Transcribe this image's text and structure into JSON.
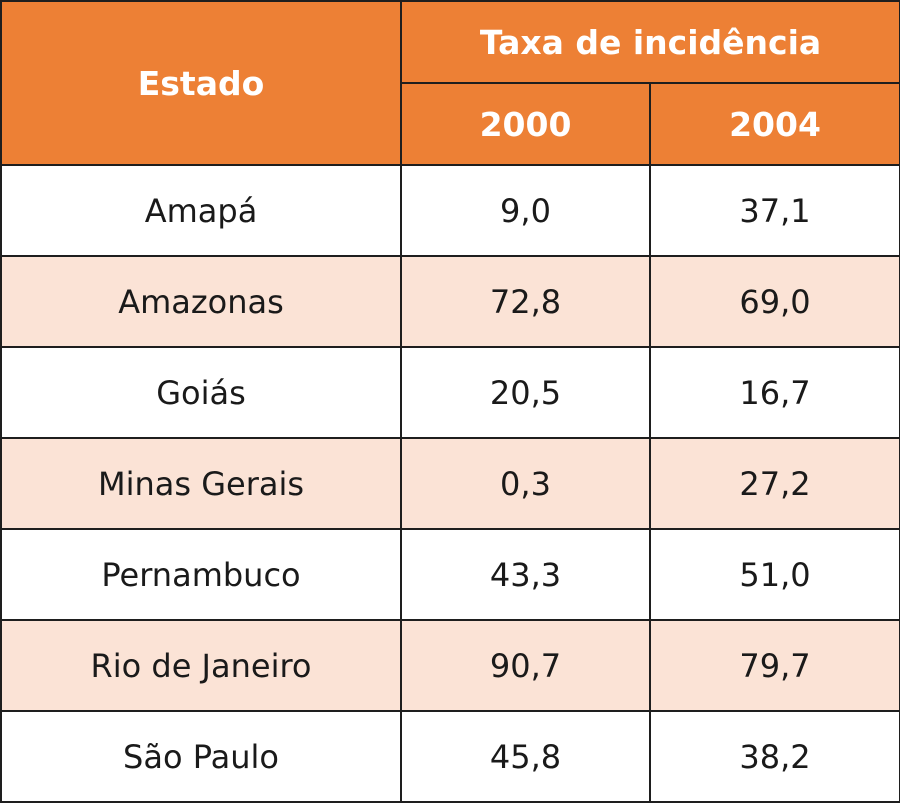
{
  "table": {
    "colors": {
      "header_bg": "#ed8035",
      "header_text": "#ffffff",
      "row_alt_bg": "#fbe3d6",
      "row_bg": "#ffffff",
      "border": "#1e1e1e"
    },
    "header": {
      "state": "Estado",
      "group": "Taxa de incidência",
      "years": [
        "2000",
        "2004"
      ]
    },
    "rows": [
      {
        "state": "Amapá",
        "v2000": "9,0",
        "v2004": "37,1"
      },
      {
        "state": "Amazonas",
        "v2000": "72,8",
        "v2004": "69,0"
      },
      {
        "state": "Goiás",
        "v2000": "20,5",
        "v2004": "16,7"
      },
      {
        "state": "Minas Gerais",
        "v2000": "0,3",
        "v2004": "27,2"
      },
      {
        "state": "Pernambuco",
        "v2000": "43,3",
        "v2004": "51,0"
      },
      {
        "state": "Rio de Janeiro",
        "v2000": "90,7",
        "v2004": "79,7"
      },
      {
        "state": "São Paulo",
        "v2000": "45,8",
        "v2004": "38,2"
      }
    ]
  }
}
